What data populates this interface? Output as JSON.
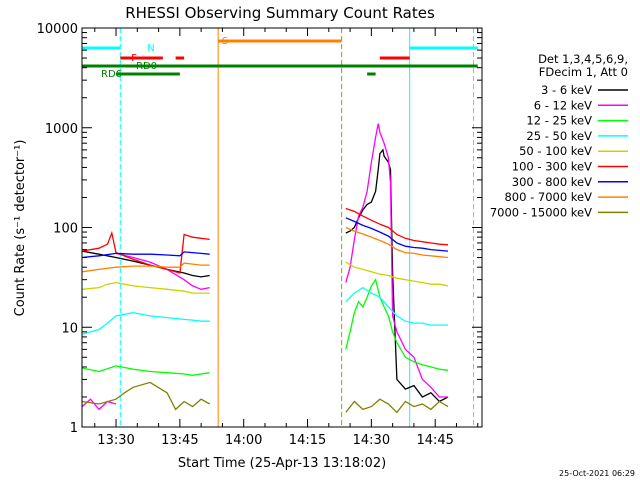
{
  "chart_data": {
    "type": "line",
    "title": "RHESSI Observing Summary Count Rates",
    "xlabel": "Start Time (25-Apr-13 13:18:02)",
    "ylabel": "Count Rate (s⁻¹ detector⁻¹)",
    "y_scale": "log",
    "x_units": "minutes after 13:18:02",
    "xlim": [
      6,
      100
    ],
    "ylim": [
      1,
      10000
    ],
    "x_ticks": [
      {
        "value": 14,
        "label": "13:30"
      },
      {
        "value": 29,
        "label": "13:45"
      },
      {
        "value": 44,
        "label": "14:00"
      },
      {
        "value": 59,
        "label": "14:15"
      },
      {
        "value": 74,
        "label": "14:30"
      },
      {
        "value": 89,
        "label": "14:45"
      }
    ],
    "y_ticks": [
      {
        "value": 1,
        "label": "1"
      },
      {
        "value": 10,
        "label": "10"
      },
      {
        "value": 100,
        "label": "100"
      },
      {
        "value": 1000,
        "label": "1000"
      },
      {
        "value": 10000,
        "label": "10000"
      }
    ],
    "legend": {
      "header": [
        "Det 1,3,4,5,6,9,",
        "FDecim 1, Att 0"
      ],
      "placement": "right"
    },
    "series": [
      {
        "name": "3 - 6 keV",
        "color": "#000000",
        "segments": [
          [
            [
              6,
              58
            ],
            [
              10,
              54
            ],
            [
              14,
              50
            ],
            [
              18,
              46
            ],
            [
              22,
              42
            ],
            [
              26,
              38
            ],
            [
              30,
              35
            ],
            [
              32,
              33
            ],
            [
              34,
              32
            ],
            [
              36,
              33
            ]
          ],
          [
            [
              68,
              88
            ],
            [
              69,
              92
            ],
            [
              70,
              100
            ],
            [
              71,
              125
            ],
            [
              72,
              150
            ],
            [
              73,
              170
            ],
            [
              74,
              180
            ],
            [
              75,
              230
            ],
            [
              75.6,
              380
            ],
            [
              76,
              550
            ],
            [
              76.7,
              600
            ],
            [
              77,
              520
            ],
            [
              78,
              450
            ],
            [
              78.5,
              380
            ],
            [
              79,
              35
            ],
            [
              80,
              3
            ],
            [
              82,
              2.4
            ],
            [
              84,
              2.6
            ],
            [
              86,
              2
            ],
            [
              88,
              2.2
            ],
            [
              90,
              1.8
            ],
            [
              92,
              2
            ]
          ]
        ]
      },
      {
        "name": "6 - 12 keV",
        "color": "#ff00ff",
        "segments": [
          [
            [
              6,
              1.6
            ],
            [
              8,
              1.9
            ],
            [
              10,
              1.5
            ],
            [
              12,
              1.8
            ],
            [
              14,
              1.7
            ]
          ],
          [
            [
              14,
              55
            ],
            [
              18,
              50
            ],
            [
              22,
              45
            ],
            [
              26,
              38
            ],
            [
              30,
              30
            ],
            [
              32,
              26
            ],
            [
              34,
              24
            ],
            [
              36,
              25
            ]
          ],
          [
            [
              68,
              28
            ],
            [
              69,
              40
            ],
            [
              70,
              75
            ],
            [
              71,
              130
            ],
            [
              72,
              160
            ],
            [
              73,
              230
            ],
            [
              74,
              450
            ],
            [
              75,
              800
            ],
            [
              75.6,
              1100
            ],
            [
              76,
              900
            ],
            [
              77,
              700
            ],
            [
              78,
              500
            ],
            [
              78.5,
              280
            ],
            [
              79,
              13
            ],
            [
              80,
              9
            ],
            [
              82,
              6
            ],
            [
              84,
              5
            ],
            [
              86,
              3
            ],
            [
              88,
              2.5
            ],
            [
              90,
              2
            ],
            [
              92,
              2
            ]
          ]
        ]
      },
      {
        "name": "12 - 25 keV",
        "color": "#00ff00",
        "segments": [
          [
            [
              6,
              3.9
            ],
            [
              10,
              3.6
            ],
            [
              14,
              4.1
            ],
            [
              18,
              3.8
            ],
            [
              22,
              3.6
            ],
            [
              26,
              3.5
            ],
            [
              30,
              3.4
            ],
            [
              32,
              3.3
            ],
            [
              34,
              3.4
            ],
            [
              36,
              3.5
            ]
          ],
          [
            [
              68,
              6
            ],
            [
              69,
              9
            ],
            [
              70,
              14
            ],
            [
              71,
              18
            ],
            [
              72,
              16
            ],
            [
              73,
              20
            ],
            [
              74,
              26
            ],
            [
              75,
              30
            ],
            [
              76,
              20
            ],
            [
              77,
              16
            ],
            [
              78,
              13
            ],
            [
              79,
              9
            ],
            [
              80,
              7
            ],
            [
              82,
              5
            ],
            [
              84,
              4.5
            ],
            [
              86,
              4.2
            ],
            [
              88,
              4
            ],
            [
              90,
              3.8
            ],
            [
              92,
              3.7
            ]
          ]
        ]
      },
      {
        "name": "25 - 50 keV",
        "color": "#00ffff",
        "segments": [
          [
            [
              6,
              8.5
            ],
            [
              10,
              9.5
            ],
            [
              12,
              11
            ],
            [
              14,
              13
            ],
            [
              18,
              14
            ],
            [
              22,
              13
            ],
            [
              26,
              12.5
            ],
            [
              30,
              12
            ],
            [
              32,
              11.8
            ],
            [
              34,
              11.5
            ],
            [
              36,
              11.5
            ]
          ],
          [
            [
              68,
              18
            ],
            [
              70,
              22
            ],
            [
              72,
              25
            ],
            [
              74,
              22
            ],
            [
              76,
              20
            ],
            [
              78,
              16
            ],
            [
              80,
              13
            ],
            [
              82,
              11.5
            ],
            [
              84,
              11
            ],
            [
              86,
              11
            ],
            [
              88,
              10.5
            ],
            [
              90,
              10.5
            ],
            [
              92,
              10.5
            ]
          ]
        ]
      },
      {
        "name": "50 - 100 keV",
        "color": "#d0d000",
        "segments": [
          [
            [
              6,
              24
            ],
            [
              10,
              25
            ],
            [
              12,
              27
            ],
            [
              14,
              28
            ],
            [
              18,
              26
            ],
            [
              22,
              25
            ],
            [
              26,
              24
            ],
            [
              30,
              23
            ],
            [
              32,
              22
            ],
            [
              34,
              22
            ],
            [
              36,
              22
            ]
          ],
          [
            [
              68,
              45
            ],
            [
              70,
              40
            ],
            [
              72,
              38
            ],
            [
              74,
              36
            ],
            [
              76,
              34
            ],
            [
              78,
              33
            ],
            [
              80,
              31
            ],
            [
              82,
              30
            ],
            [
              84,
              29
            ],
            [
              86,
              28
            ],
            [
              88,
              27
            ],
            [
              90,
              27
            ],
            [
              92,
              26
            ]
          ]
        ]
      },
      {
        "name": "100 - 300 keV",
        "color": "#ff0000",
        "segments": [
          [
            [
              6,
              58
            ],
            [
              10,
              62
            ],
            [
              12,
              68
            ],
            [
              13,
              88
            ],
            [
              14,
              56
            ],
            [
              18,
              48
            ],
            [
              22,
              42
            ],
            [
              26,
              38
            ],
            [
              29,
              35
            ],
            [
              30,
              85
            ],
            [
              32,
              80
            ],
            [
              34,
              78
            ],
            [
              36,
              76
            ]
          ],
          [
            [
              68,
              155
            ],
            [
              70,
              145
            ],
            [
              72,
              130
            ],
            [
              74,
              118
            ],
            [
              76,
              108
            ],
            [
              78,
              100
            ],
            [
              80,
              85
            ],
            [
              82,
              78
            ],
            [
              84,
              74
            ],
            [
              86,
              72
            ],
            [
              88,
              70
            ],
            [
              90,
              68
            ],
            [
              92,
              67
            ]
          ]
        ]
      },
      {
        "name": "300 - 800 keV",
        "color": "#0000ff",
        "segments": [
          [
            [
              6,
              50
            ],
            [
              10,
              52
            ],
            [
              14,
              55
            ],
            [
              18,
              54
            ],
            [
              22,
              54
            ],
            [
              26,
              53
            ],
            [
              29,
              52
            ],
            [
              30,
              57
            ],
            [
              32,
              56
            ],
            [
              34,
              55
            ],
            [
              36,
              54
            ]
          ],
          [
            [
              68,
              125
            ],
            [
              70,
              115
            ],
            [
              72,
              105
            ],
            [
              74,
              98
            ],
            [
              76,
              90
            ],
            [
              78,
              82
            ],
            [
              80,
              70
            ],
            [
              82,
              65
            ],
            [
              84,
              63
            ],
            [
              86,
              62
            ],
            [
              88,
              60
            ],
            [
              90,
              59
            ],
            [
              92,
              58
            ]
          ]
        ]
      },
      {
        "name": "800 - 7000 keV",
        "color": "#ff8000",
        "segments": [
          [
            [
              6,
              36
            ],
            [
              10,
              38
            ],
            [
              14,
              40
            ],
            [
              18,
              41
            ],
            [
              22,
              41
            ],
            [
              26,
              40
            ],
            [
              29,
              40
            ],
            [
              30,
              44
            ],
            [
              32,
              43
            ],
            [
              34,
              42
            ],
            [
              36,
              42
            ]
          ],
          [
            [
              68,
              100
            ],
            [
              70,
              92
            ],
            [
              72,
              86
            ],
            [
              74,
              80
            ],
            [
              76,
              74
            ],
            [
              78,
              68
            ],
            [
              80,
              60
            ],
            [
              82,
              56
            ],
            [
              84,
              55
            ],
            [
              86,
              53
            ],
            [
              88,
              52
            ],
            [
              90,
              51
            ],
            [
              92,
              50
            ]
          ]
        ]
      },
      {
        "name": "7000 - 15000 keV",
        "color": "#808000",
        "segments": [
          [
            [
              6,
              1.8
            ],
            [
              10,
              1.7
            ],
            [
              14,
              1.9
            ],
            [
              16,
              2.2
            ],
            [
              18,
              2.5
            ],
            [
              22,
              2.8
            ],
            [
              26,
              2.2
            ],
            [
              28,
              1.5
            ],
            [
              30,
              1.8
            ],
            [
              32,
              1.6
            ],
            [
              34,
              1.9
            ],
            [
              36,
              1.7
            ]
          ],
          [
            [
              68,
              1.4
            ],
            [
              70,
              1.8
            ],
            [
              72,
              1.5
            ],
            [
              74,
              1.6
            ],
            [
              76,
              1.9
            ],
            [
              78,
              1.7
            ],
            [
              80,
              1.4
            ],
            [
              82,
              1.8
            ],
            [
              84,
              1.6
            ],
            [
              86,
              1.7
            ],
            [
              88,
              1.5
            ],
            [
              90,
              1.8
            ],
            [
              92,
              1.6
            ]
          ]
        ]
      }
    ],
    "flag_bars": [
      {
        "label": "S",
        "color": "#ff8000",
        "segments": [
          [
            38,
            67
          ]
        ]
      },
      {
        "label": "N",
        "color": "#00ffff",
        "segments": [
          [
            6,
            15
          ],
          [
            83,
            99
          ]
        ]
      },
      {
        "label": "F",
        "color": "#ff0000",
        "segments": [
          [
            15,
            25
          ],
          [
            28,
            30
          ],
          [
            76,
            83
          ]
        ]
      },
      {
        "label": "RD0",
        "color": "#008000",
        "segments": [
          [
            6,
            99
          ]
        ]
      },
      {
        "label": "RD6",
        "color": "#008000",
        "segments": [
          [
            14,
            29
          ],
          [
            73,
            75
          ]
        ]
      }
    ],
    "vertical_lines": [
      {
        "x": 6,
        "color": "#00ffff",
        "style": "solid"
      },
      {
        "x": 15,
        "color": "#00ffff",
        "style": "dashed"
      },
      {
        "x": 38,
        "color": "#ff8000",
        "style": "solid"
      },
      {
        "x": 67,
        "color": "#ff8000",
        "style": "dashed"
      },
      {
        "x": 67,
        "color": "#00ff00",
        "style": "dashed"
      },
      {
        "x": 83,
        "color": "#00ffff",
        "style": "solid"
      },
      {
        "x": 98,
        "color": "#00ffff",
        "style": "dashed"
      }
    ]
  },
  "footer": {
    "timestamp": "25-Oct-2021 06:29"
  }
}
